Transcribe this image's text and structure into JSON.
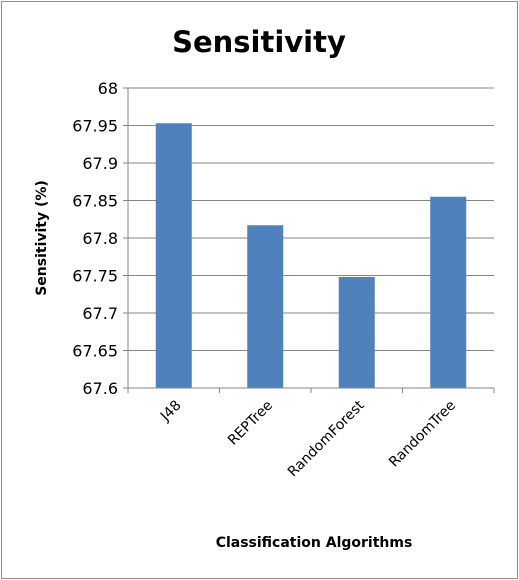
{
  "chart_data": {
    "type": "bar",
    "title": "Sensitivity",
    "xlabel": "Classification Algorithms",
    "ylabel": "Sensitivity (%)",
    "categories": [
      "J48",
      "REPTree",
      "RandomForest",
      "RandomTree"
    ],
    "values": [
      67.953,
      67.817,
      67.748,
      67.855
    ],
    "ylim": [
      67.6,
      68
    ],
    "yticks": [
      "67.6",
      "67.65",
      "67.7",
      "67.75",
      "67.8",
      "67.85",
      "67.9",
      "67.95",
      "68"
    ],
    "grid": true,
    "legend": "none",
    "bar_color": "#4f81bd",
    "grid_color": "#868686"
  }
}
